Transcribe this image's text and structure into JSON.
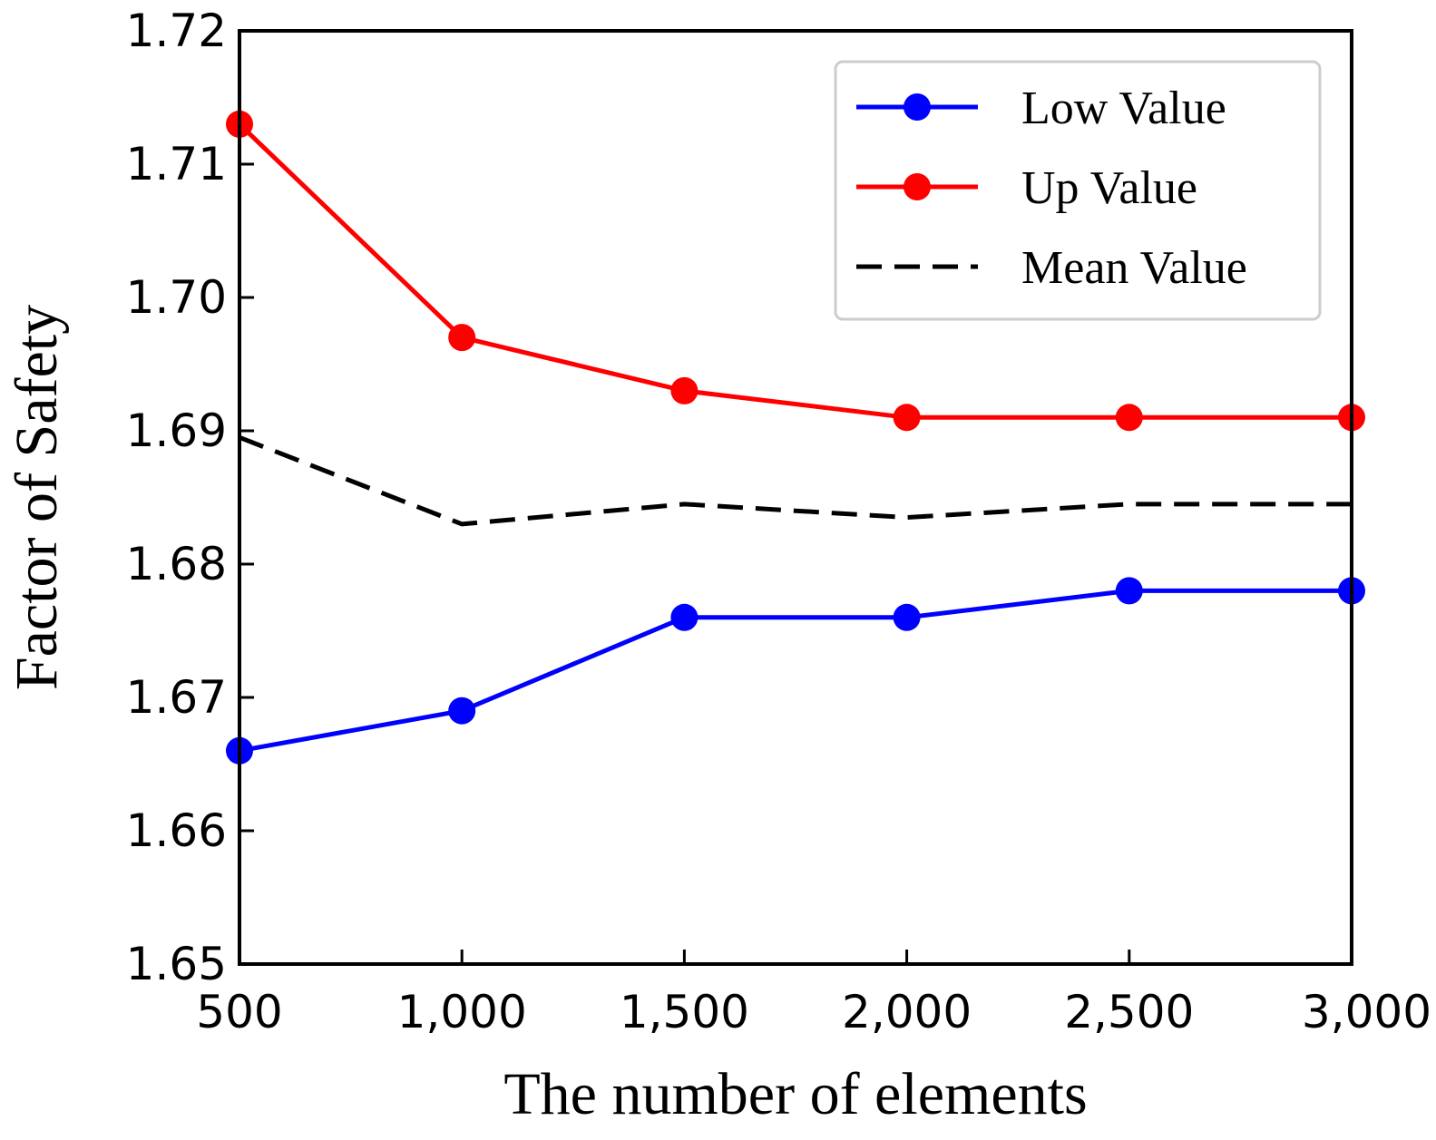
{
  "chart_data": {
    "type": "line",
    "title": "",
    "xlabel": "The number of elements",
    "ylabel": "Factor of Safety",
    "x": [
      500,
      1000,
      1500,
      2000,
      2500,
      3000
    ],
    "xticks": [
      "500",
      "1,000",
      "1,500",
      "2,000",
      "2,500",
      "3,000"
    ],
    "yticks": [
      "1.65",
      "1.66",
      "1.67",
      "1.68",
      "1.69",
      "1.70",
      "1.71",
      "1.72"
    ],
    "xlim": [
      500,
      3000
    ],
    "ylim": [
      1.65,
      1.72
    ],
    "grid": false,
    "legend_position": "top-right",
    "series": [
      {
        "name": "Low Value",
        "color": "#0000ff",
        "style": "solid",
        "marker": "circle",
        "values": [
          1.666,
          1.669,
          1.676,
          1.676,
          1.678,
          1.678
        ]
      },
      {
        "name": "Up Value",
        "color": "#ff0000",
        "style": "solid",
        "marker": "circle",
        "values": [
          1.713,
          1.697,
          1.693,
          1.691,
          1.691,
          1.691
        ]
      },
      {
        "name": "Mean Value",
        "color": "#000000",
        "style": "dashed",
        "marker": "none",
        "values": [
          1.6895,
          1.683,
          1.6845,
          1.6835,
          1.6845,
          1.6845
        ]
      }
    ]
  }
}
